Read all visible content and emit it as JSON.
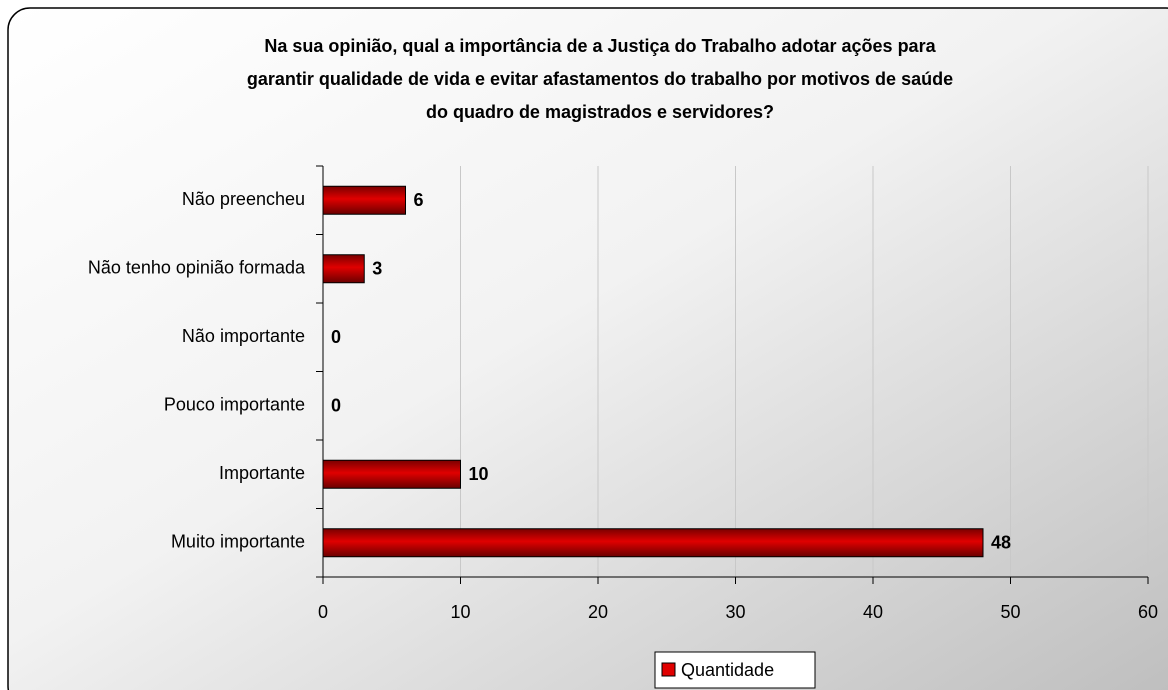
{
  "chart_data": {
    "type": "bar",
    "orientation": "horizontal",
    "title": [
      "Na sua opinião, qual a importância de a Justiça do Trabalho adotar ações para",
      "garantir qualidade de vida e evitar afastamentos do trabalho por motivos de saúde",
      "do quadro de magistrados e  servidores?"
    ],
    "categories": [
      "Não preencheu",
      "Não tenho opinião formada",
      "Não importante",
      "Pouco importante",
      "Importante",
      "Muito importante"
    ],
    "series": [
      {
        "name": "Quantidade",
        "color": "#e00000",
        "values": [
          6,
          3,
          0,
          0,
          10,
          48
        ]
      }
    ],
    "xlim": [
      0,
      60
    ],
    "xticks": [
      0,
      10,
      20,
      30,
      40,
      50,
      60
    ],
    "grid": true,
    "legend": "bottom"
  }
}
